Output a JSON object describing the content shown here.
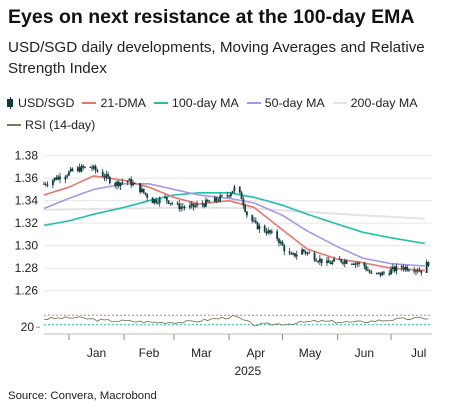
{
  "header": {
    "title": "Eyes on next resistance at the 100-day EMA",
    "subtitle": "USD/SGD daily developments, Moving Averages and Relative Strength Index"
  },
  "legend": {
    "items": [
      {
        "label": "USD/SGD",
        "color": "#0f3a3e"
      },
      {
        "label": "21-DMA",
        "color": "#e8766b"
      },
      {
        "label": "100-day MA",
        "color": "#1fc1a9"
      },
      {
        "label": "50-day MA",
        "color": "#a497e8"
      },
      {
        "label": "200-day MA",
        "color": "#e3e3e3"
      },
      {
        "label": "RSI (14-day)",
        "color": "#7a7a5a"
      }
    ]
  },
  "source": "Source: Convera, Macrobond",
  "chart_data": {
    "type": "line",
    "ylim": [
      1.25,
      1.385
    ],
    "yticks": [
      "1.38",
      "1.36",
      "1.34",
      "1.32",
      "1.30",
      "1.28",
      "1.26"
    ],
    "ytick_values": [
      1.38,
      1.36,
      1.34,
      1.32,
      1.3,
      1.28,
      1.26
    ],
    "xticks": [
      "Jan",
      "Feb",
      "Mar",
      "Apr",
      "May",
      "Jun",
      "Jul"
    ],
    "xlabel": "2025",
    "grid": true,
    "series": [
      {
        "name": "USD/SGD",
        "style": "candlestick",
        "color": "#0f3a3e",
        "anchors": [
          {
            "x": "2024-12-18",
            "y": 1.355
          },
          {
            "x": "2024-12-26",
            "y": 1.361
          },
          {
            "x": "2025-01-06",
            "y": 1.368
          },
          {
            "x": "2025-01-13",
            "y": 1.37
          },
          {
            "x": "2025-01-20",
            "y": 1.363
          },
          {
            "x": "2025-01-27",
            "y": 1.355
          },
          {
            "x": "2025-02-03",
            "y": 1.358
          },
          {
            "x": "2025-02-10",
            "y": 1.35
          },
          {
            "x": "2025-02-17",
            "y": 1.34
          },
          {
            "x": "2025-02-24",
            "y": 1.342
          },
          {
            "x": "2025-03-03",
            "y": 1.335
          },
          {
            "x": "2025-03-10",
            "y": 1.334
          },
          {
            "x": "2025-03-17",
            "y": 1.337
          },
          {
            "x": "2025-03-24",
            "y": 1.34
          },
          {
            "x": "2025-03-31",
            "y": 1.345
          },
          {
            "x": "2025-04-04",
            "y": 1.351
          },
          {
            "x": "2025-04-08",
            "y": 1.343
          },
          {
            "x": "2025-04-11",
            "y": 1.328
          },
          {
            "x": "2025-04-16",
            "y": 1.318
          },
          {
            "x": "2025-04-22",
            "y": 1.313
          },
          {
            "x": "2025-04-28",
            "y": 1.307
          },
          {
            "x": "2025-05-02",
            "y": 1.297
          },
          {
            "x": "2025-05-06",
            "y": 1.29
          },
          {
            "x": "2025-05-12",
            "y": 1.296
          },
          {
            "x": "2025-05-19",
            "y": 1.29
          },
          {
            "x": "2025-05-26",
            "y": 1.284
          },
          {
            "x": "2025-06-02",
            "y": 1.287
          },
          {
            "x": "2025-06-09",
            "y": 1.286
          },
          {
            "x": "2025-06-16",
            "y": 1.282
          },
          {
            "x": "2025-06-20",
            "y": 1.274
          },
          {
            "x": "2025-06-26",
            "y": 1.275
          },
          {
            "x": "2025-07-01",
            "y": 1.278
          },
          {
            "x": "2025-07-07",
            "y": 1.281
          },
          {
            "x": "2025-07-14",
            "y": 1.28
          },
          {
            "x": "2025-07-18",
            "y": 1.278
          },
          {
            "x": "2025-07-22",
            "y": 1.285
          }
        ]
      },
      {
        "name": "21-DMA",
        "color": "#e8766b",
        "points": [
          {
            "x": "2024-12-18",
            "y": 1.345
          },
          {
            "x": "2025-01-01",
            "y": 1.352
          },
          {
            "x": "2025-01-15",
            "y": 1.362
          },
          {
            "x": "2025-02-01",
            "y": 1.358
          },
          {
            "x": "2025-02-15",
            "y": 1.352
          },
          {
            "x": "2025-03-01",
            "y": 1.343
          },
          {
            "x": "2025-03-15",
            "y": 1.337
          },
          {
            "x": "2025-04-01",
            "y": 1.34
          },
          {
            "x": "2025-04-15",
            "y": 1.334
          },
          {
            "x": "2025-05-01",
            "y": 1.314
          },
          {
            "x": "2025-05-15",
            "y": 1.297
          },
          {
            "x": "2025-06-01",
            "y": 1.288
          },
          {
            "x": "2025-06-15",
            "y": 1.285
          },
          {
            "x": "2025-07-01",
            "y": 1.28
          },
          {
            "x": "2025-07-20",
            "y": 1.278
          }
        ]
      },
      {
        "name": "100-day MA",
        "color": "#1fc1a9",
        "points": [
          {
            "x": "2024-12-18",
            "y": 1.318
          },
          {
            "x": "2025-01-01",
            "y": 1.322
          },
          {
            "x": "2025-01-15",
            "y": 1.328
          },
          {
            "x": "2025-02-01",
            "y": 1.334
          },
          {
            "x": "2025-02-15",
            "y": 1.34
          },
          {
            "x": "2025-03-01",
            "y": 1.345
          },
          {
            "x": "2025-03-15",
            "y": 1.347
          },
          {
            "x": "2025-04-01",
            "y": 1.347
          },
          {
            "x": "2025-04-15",
            "y": 1.343
          },
          {
            "x": "2025-05-01",
            "y": 1.336
          },
          {
            "x": "2025-05-15",
            "y": 1.328
          },
          {
            "x": "2025-06-01",
            "y": 1.319
          },
          {
            "x": "2025-06-15",
            "y": 1.312
          },
          {
            "x": "2025-07-01",
            "y": 1.307
          },
          {
            "x": "2025-07-20",
            "y": 1.302
          }
        ]
      },
      {
        "name": "50-day MA",
        "color": "#a497e8",
        "points": [
          {
            "x": "2024-12-18",
            "y": 1.333
          },
          {
            "x": "2025-01-01",
            "y": 1.342
          },
          {
            "x": "2025-01-15",
            "y": 1.35
          },
          {
            "x": "2025-02-01",
            "y": 1.355
          },
          {
            "x": "2025-02-15",
            "y": 1.355
          },
          {
            "x": "2025-03-01",
            "y": 1.35
          },
          {
            "x": "2025-03-15",
            "y": 1.345
          },
          {
            "x": "2025-04-01",
            "y": 1.342
          },
          {
            "x": "2025-04-15",
            "y": 1.338
          },
          {
            "x": "2025-05-01",
            "y": 1.327
          },
          {
            "x": "2025-05-15",
            "y": 1.313
          },
          {
            "x": "2025-06-01",
            "y": 1.299
          },
          {
            "x": "2025-06-15",
            "y": 1.289
          },
          {
            "x": "2025-07-01",
            "y": 1.284
          },
          {
            "x": "2025-07-20",
            "y": 1.282
          }
        ]
      },
      {
        "name": "200-day MA",
        "color": "#e3e3e3",
        "points": [
          {
            "x": "2024-12-18",
            "y": 1.332
          },
          {
            "x": "2025-02-01",
            "y": 1.333
          },
          {
            "x": "2025-03-15",
            "y": 1.334
          },
          {
            "x": "2025-04-15",
            "y": 1.333
          },
          {
            "x": "2025-05-15",
            "y": 1.33
          },
          {
            "x": "2025-06-15",
            "y": 1.327
          },
          {
            "x": "2025-07-20",
            "y": 1.324
          }
        ]
      }
    ],
    "rsi": {
      "name": "RSI (14-day)",
      "ytick": "20",
      "ytick_value": 20,
      "ylim": [
        0,
        100
      ],
      "color": "#7a7a5a",
      "overbought": {
        "value": 70,
        "color": "#e8766b"
      },
      "oversold": {
        "value": 30,
        "color": "#1fc1a9"
      },
      "anchors": [
        {
          "x": "2024-12-18",
          "y": 55
        },
        {
          "x": "2025-01-05",
          "y": 60
        },
        {
          "x": "2025-01-20",
          "y": 48
        },
        {
          "x": "2025-02-05",
          "y": 45
        },
        {
          "x": "2025-02-20",
          "y": 40
        },
        {
          "x": "2025-03-10",
          "y": 42
        },
        {
          "x": "2025-04-04",
          "y": 65
        },
        {
          "x": "2025-04-15",
          "y": 30
        },
        {
          "x": "2025-05-05",
          "y": 35
        },
        {
          "x": "2025-05-20",
          "y": 45
        },
        {
          "x": "2025-06-10",
          "y": 40
        },
        {
          "x": "2025-06-25",
          "y": 48
        },
        {
          "x": "2025-07-10",
          "y": 55
        },
        {
          "x": "2025-07-22",
          "y": 58
        }
      ]
    }
  }
}
